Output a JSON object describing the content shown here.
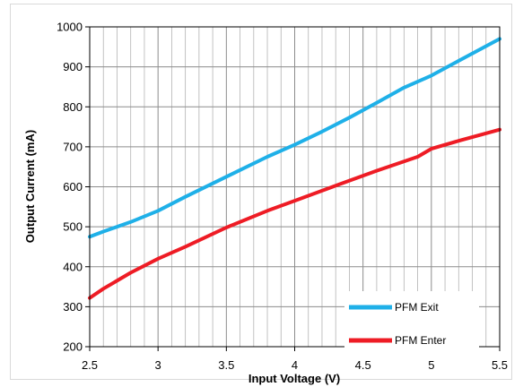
{
  "chart_data": {
    "type": "line",
    "xlabel": "Input Voltage (V)",
    "ylabel": "Output Current (mA)",
    "xlim": [
      2.5,
      5.5
    ],
    "ylim": [
      200,
      1000
    ],
    "x_ticks": [
      "2.5",
      "3",
      "3.5",
      "4",
      "4.5",
      "5",
      "5.5"
    ],
    "y_ticks": [
      "200",
      "300",
      "400",
      "500",
      "600",
      "700",
      "800",
      "900",
      "1000"
    ],
    "grid": true,
    "legend_position": "bottom-right",
    "series": [
      {
        "name": "PFM Exit",
        "color": "#1fb0e8",
        "x": [
          2.5,
          2.6,
          2.8,
          3.0,
          3.2,
          3.5,
          3.8,
          4.0,
          4.2,
          4.4,
          4.6,
          4.8,
          5.0,
          5.2,
          5.5
        ],
        "y": [
          475,
          488,
          512,
          540,
          575,
          625,
          675,
          705,
          738,
          773,
          810,
          848,
          878,
          915,
          970
        ]
      },
      {
        "name": "PFM Enter",
        "color": "#ee1c25",
        "x": [
          2.5,
          2.6,
          2.8,
          3.0,
          3.2,
          3.5,
          3.8,
          4.0,
          4.3,
          4.6,
          4.9,
          5.0,
          5.2,
          5.5
        ],
        "y": [
          322,
          345,
          385,
          420,
          450,
          498,
          540,
          565,
          603,
          640,
          675,
          695,
          715,
          743
        ]
      }
    ]
  }
}
